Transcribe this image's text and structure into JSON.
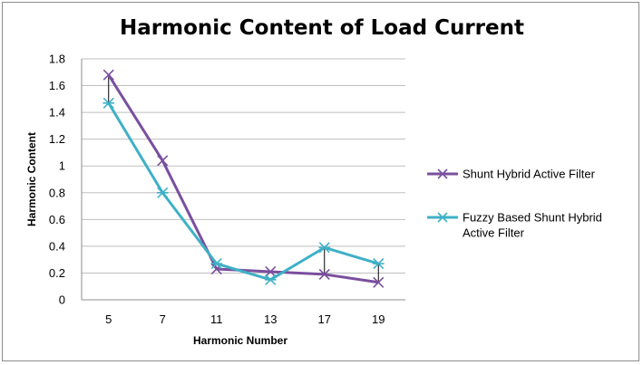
{
  "chart_data": {
    "type": "line",
    "title": "Harmonic Content of Load Current",
    "xlabel": "Harmonic Number",
    "ylabel": "Harmonic Content",
    "categories": [
      "5",
      "7",
      "11",
      "13",
      "17",
      "19"
    ],
    "ylim": [
      0,
      1.8
    ],
    "yticks": [
      "0",
      "0.2",
      "0.4",
      "0.6",
      "0.8",
      "1",
      "1.2",
      "1.4",
      "1.6",
      "1.8"
    ],
    "grid": true,
    "legend_position": "right",
    "series": [
      {
        "name": "Shunt Hybrid Active Filter",
        "color": "#7a4f9e",
        "marker": "x",
        "values": [
          1.68,
          1.04,
          0.23,
          0.21,
          0.19,
          0.13
        ]
      },
      {
        "name": "Fuzzy Based Shunt Hybrid Active Filter",
        "color": "#3fb0c6",
        "marker": "star",
        "values": [
          1.47,
          0.8,
          0.27,
          0.15,
          0.39,
          0.27
        ]
      }
    ],
    "annotations": "vertical connector lines between the two series at harmonics 5, 17 and 19"
  }
}
